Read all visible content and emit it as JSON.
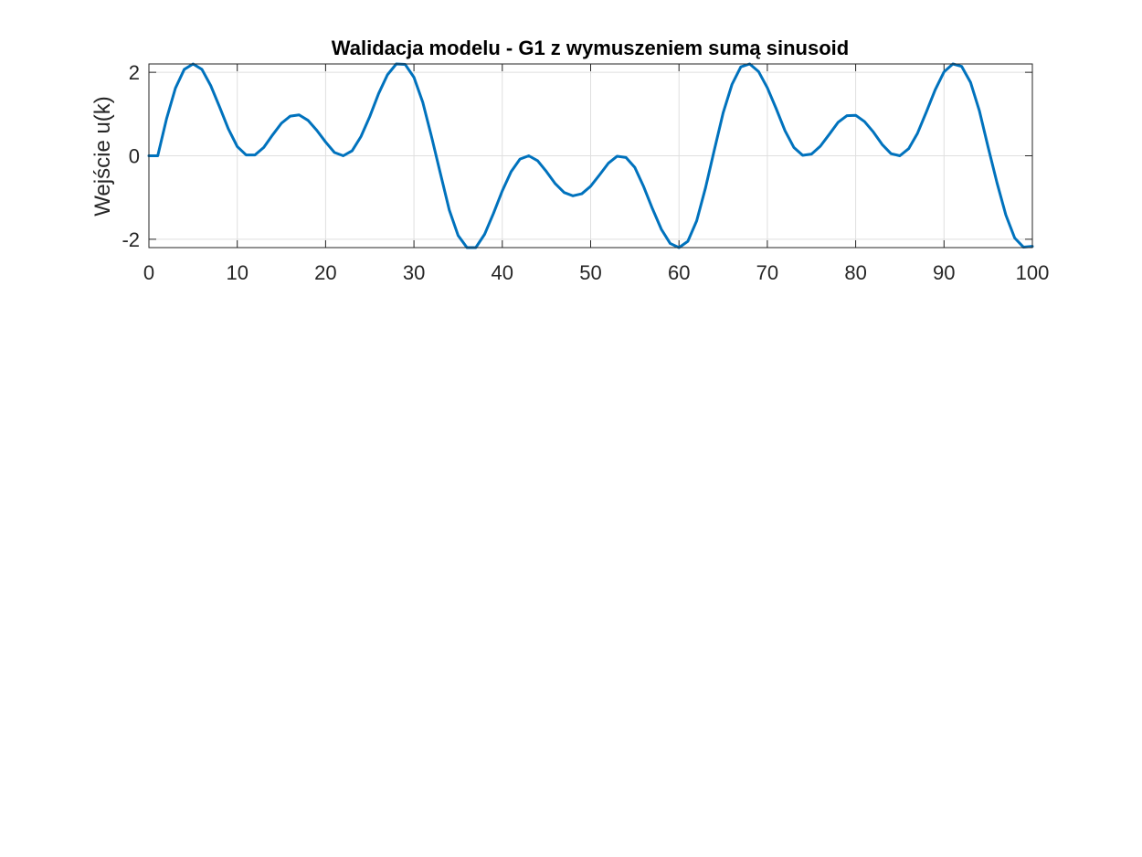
{
  "chart_data": {
    "type": "line",
    "title": "Walidacja modelu - G1 z wymuszeniem sumą sinusoid",
    "xlabel": "",
    "ylabel": "Wejście u(k)",
    "xlim": [
      0,
      100
    ],
    "ylim": [
      -2.2,
      2.2
    ],
    "xticks": [
      0,
      10,
      20,
      30,
      40,
      50,
      60,
      70,
      80,
      90,
      100
    ],
    "xtick_labels": [
      "0",
      "10",
      "20",
      "30",
      "40",
      "50",
      "60",
      "70",
      "80",
      "90",
      "100"
    ],
    "yticks": [
      -2,
      0,
      2
    ],
    "ytick_labels": [
      "-2",
      "0",
      "2"
    ],
    "grid": true,
    "line_color": "#0072BD",
    "series": [
      {
        "x": [
          0,
          1,
          2,
          3,
          4,
          5,
          6,
          7,
          8,
          9,
          10,
          11,
          12,
          13,
          14,
          15,
          16,
          17,
          18,
          19,
          20,
          21,
          22,
          23,
          24,
          25,
          26,
          27,
          28,
          29,
          30,
          31,
          32,
          33,
          34,
          35,
          36,
          37,
          38,
          39,
          40,
          41,
          42,
          43,
          44,
          45,
          46,
          47,
          48,
          49,
          50,
          51,
          52,
          53,
          54,
          55,
          56,
          57,
          58,
          59,
          60,
          61,
          62,
          63,
          64,
          65,
          66,
          67,
          68,
          69,
          70,
          71,
          72,
          73,
          74,
          75,
          76,
          77,
          78,
          79,
          80,
          81,
          82,
          83,
          84,
          85,
          86,
          87,
          88,
          89,
          90,
          91,
          92,
          93,
          94,
          95,
          96,
          97,
          98,
          99,
          100
        ],
        "values": [
          0,
          0,
          0.89,
          1.62,
          2.07,
          2.22,
          2.07,
          1.68,
          1.17,
          0.64,
          0.22,
          0.02,
          0.02,
          0.2,
          0.5,
          0.78,
          0.95,
          0.98,
          0.85,
          0.61,
          0.33,
          0.08,
          0,
          0.12,
          0.46,
          0.94,
          1.49,
          1.94,
          2.2,
          2.19,
          1.88,
          1.28,
          0.45,
          -0.43,
          -1.3,
          -1.91,
          -2.2,
          -2.2,
          -1.88,
          -1.38,
          -0.84,
          -0.38,
          -0.08,
          0,
          -0.12,
          -0.38,
          -0.67,
          -0.88,
          -0.96,
          -0.91,
          -0.73,
          -0.46,
          -0.18,
          -0.01,
          -0.04,
          -0.28,
          -0.74,
          -1.27,
          -1.76,
          -2.1,
          -2.22,
          -2.05,
          -1.56,
          -0.77,
          0.14,
          1.03,
          1.71,
          2.13,
          2.22,
          2.02,
          1.63,
          1.13,
          0.6,
          0.2,
          0.01,
          0.04,
          0.23,
          0.51,
          0.8,
          0.96,
          0.97,
          0.82,
          0.57,
          0.27,
          0.05,
          0,
          0.17,
          0.54,
          1.05,
          1.58,
          2.01,
          2.22,
          2.14,
          1.76,
          1.08,
          0.2,
          -0.65,
          -1.42,
          -1.97,
          -2.19,
          -2.17
        ]
      }
    ]
  }
}
